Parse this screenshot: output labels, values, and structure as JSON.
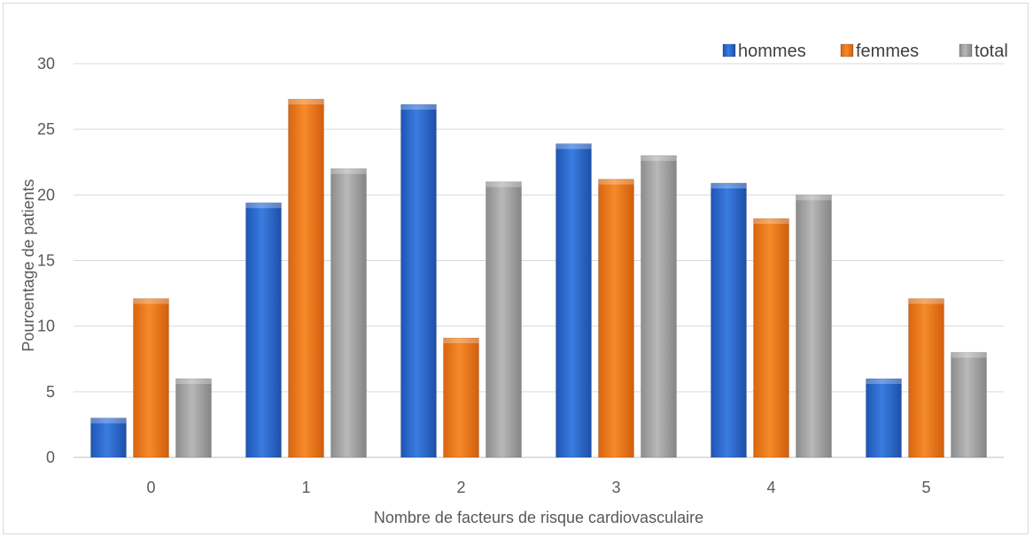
{
  "chart_data": {
    "type": "bar",
    "title": "",
    "xlabel": "Nombre de facteurs de risque cardiovasculaire",
    "ylabel": "Pourcentage de patients",
    "categories": [
      "0",
      "1",
      "2",
      "3",
      "4",
      "5"
    ],
    "ylim": [
      0,
      30
    ],
    "yticks": [
      0,
      5,
      10,
      15,
      20,
      25,
      30
    ],
    "grid": true,
    "legend_position": "top-right",
    "series": [
      {
        "name": "hommes",
        "color": "#2f6fd6",
        "values": [
          3,
          19.4,
          26.9,
          23.9,
          20.9,
          6
        ]
      },
      {
        "name": "femmes",
        "color": "#f07c1c",
        "values": [
          12.1,
          27.3,
          9.1,
          21.2,
          18.2,
          12.1
        ]
      },
      {
        "name": "total",
        "color": "#a6a6a6",
        "values": [
          6,
          22,
          21,
          23,
          20,
          8
        ]
      }
    ]
  }
}
